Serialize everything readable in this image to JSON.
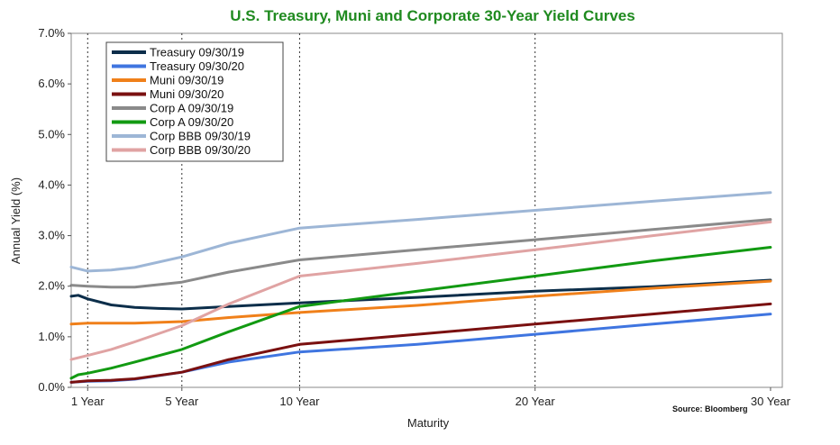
{
  "chart_data": {
    "type": "line",
    "title": "U.S. Treasury, Muni and Corporate 30-Year Yield Curves",
    "xlabel": "Maturity",
    "ylabel": "Annual Yield (%)",
    "source": "Source: Bloomberg",
    "xlim": [
      0.3,
      30.5
    ],
    "ylim": [
      0,
      7
    ],
    "y_ticks": [
      0,
      1,
      2,
      3,
      4,
      5,
      6,
      7
    ],
    "y_tick_labels": [
      "0.0%",
      "1.0%",
      "2.0%",
      "3.0%",
      "4.0%",
      "5.0%",
      "6.0%",
      "7.0%"
    ],
    "x_ticks": [
      1,
      5,
      10,
      20,
      30
    ],
    "x_tick_labels": [
      "1 Year",
      "5 Year",
      "10 Year",
      "20 Year",
      "30 Year"
    ],
    "vertical_gridlines_at": [
      1,
      5,
      10,
      20
    ],
    "grid": "vertical dotted",
    "legend_position": "top-left",
    "series": [
      {
        "name": "Treasury 09/30/19",
        "color": "#0c2e4a",
        "points": [
          [
            0.3,
            1.8
          ],
          [
            0.6,
            1.82
          ],
          [
            1,
            1.75
          ],
          [
            2,
            1.63
          ],
          [
            3,
            1.58
          ],
          [
            4,
            1.56
          ],
          [
            5,
            1.55
          ],
          [
            7,
            1.6
          ],
          [
            10,
            1.67
          ],
          [
            15,
            1.78
          ],
          [
            20,
            1.9
          ],
          [
            25,
            1.99
          ],
          [
            30,
            2.12
          ]
        ]
      },
      {
        "name": "Treasury 09/30/20",
        "color": "#3f75e0",
        "points": [
          [
            0.3,
            0.1
          ],
          [
            1,
            0.12
          ],
          [
            2,
            0.13
          ],
          [
            3,
            0.16
          ],
          [
            5,
            0.3
          ],
          [
            7,
            0.5
          ],
          [
            10,
            0.7
          ],
          [
            15,
            0.85
          ],
          [
            20,
            1.05
          ],
          [
            25,
            1.25
          ],
          [
            30,
            1.45
          ]
        ]
      },
      {
        "name": "Muni 09/30/19",
        "color": "#f0801a",
        "points": [
          [
            0.3,
            1.25
          ],
          [
            1,
            1.27
          ],
          [
            2,
            1.27
          ],
          [
            3,
            1.27
          ],
          [
            5,
            1.3
          ],
          [
            7,
            1.38
          ],
          [
            10,
            1.48
          ],
          [
            15,
            1.62
          ],
          [
            20,
            1.8
          ],
          [
            25,
            1.96
          ],
          [
            30,
            2.1
          ]
        ]
      },
      {
        "name": "Muni 09/30/20",
        "color": "#7a1010",
        "points": [
          [
            0.3,
            0.1
          ],
          [
            1,
            0.13
          ],
          [
            2,
            0.14
          ],
          [
            3,
            0.17
          ],
          [
            5,
            0.3
          ],
          [
            7,
            0.55
          ],
          [
            10,
            0.85
          ],
          [
            15,
            1.05
          ],
          [
            20,
            1.25
          ],
          [
            25,
            1.45
          ],
          [
            30,
            1.65
          ]
        ]
      },
      {
        "name": "Corp A 09/30/19",
        "color": "#8a8a8a",
        "points": [
          [
            0.3,
            2.02
          ],
          [
            1,
            2.0
          ],
          [
            2,
            1.98
          ],
          [
            3,
            1.98
          ],
          [
            5,
            2.08
          ],
          [
            7,
            2.28
          ],
          [
            10,
            2.52
          ],
          [
            15,
            2.72
          ],
          [
            20,
            2.92
          ],
          [
            25,
            3.12
          ],
          [
            30,
            3.32
          ]
        ]
      },
      {
        "name": "Corp A 09/30/20",
        "color": "#129a12",
        "points": [
          [
            0.3,
            0.18
          ],
          [
            0.6,
            0.25
          ],
          [
            1,
            0.28
          ],
          [
            2,
            0.38
          ],
          [
            3,
            0.5
          ],
          [
            5,
            0.75
          ],
          [
            7,
            1.1
          ],
          [
            10,
            1.6
          ],
          [
            15,
            1.9
          ],
          [
            20,
            2.2
          ],
          [
            25,
            2.5
          ],
          [
            30,
            2.77
          ]
        ]
      },
      {
        "name": "Corp BBB 09/30/19",
        "color": "#9db6d6",
        "points": [
          [
            0.3,
            2.38
          ],
          [
            1,
            2.3
          ],
          [
            2,
            2.32
          ],
          [
            3,
            2.37
          ],
          [
            5,
            2.58
          ],
          [
            7,
            2.85
          ],
          [
            10,
            3.15
          ],
          [
            15,
            3.32
          ],
          [
            20,
            3.5
          ],
          [
            25,
            3.68
          ],
          [
            30,
            3.85
          ]
        ]
      },
      {
        "name": "Corp BBB 09/30/20",
        "color": "#e0a3a3",
        "points": [
          [
            0.3,
            0.55
          ],
          [
            1,
            0.63
          ],
          [
            2,
            0.75
          ],
          [
            3,
            0.9
          ],
          [
            5,
            1.22
          ],
          [
            7,
            1.65
          ],
          [
            10,
            2.2
          ],
          [
            15,
            2.45
          ],
          [
            20,
            2.72
          ],
          [
            25,
            3.0
          ],
          [
            30,
            3.27
          ]
        ]
      }
    ]
  }
}
